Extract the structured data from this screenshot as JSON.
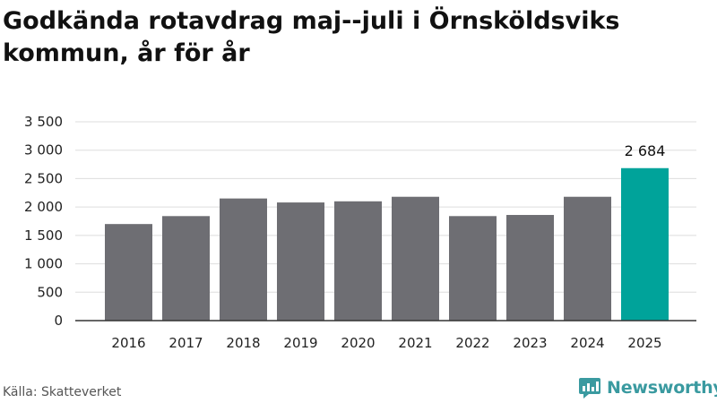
{
  "title": "Godkända rotavdrag maj--juli i Örnsköldsviks kommun, år för år",
  "source": "Källa: Skatteverket",
  "brand": {
    "name": "Newsworthy",
    "icon": "newsworthy-logo-icon",
    "color": "#3a9aa0"
  },
  "colors": {
    "bar": "#6e6e73",
    "highlight": "#00a39a",
    "grid": "#dddddd",
    "axis": "#333333",
    "text": "#222222"
  },
  "chart_data": {
    "type": "bar",
    "title": "Godkända rotavdrag maj--juli i Örnsköldsviks kommun, år för år",
    "categories": [
      "2016",
      "2017",
      "2018",
      "2019",
      "2020",
      "2021",
      "2022",
      "2023",
      "2024",
      "2025"
    ],
    "values": [
      1700,
      1840,
      2150,
      2080,
      2100,
      2180,
      1840,
      1860,
      2180,
      2684
    ],
    "highlight_index": 9,
    "data_labels": [
      {
        "index": 9,
        "text": "2 684"
      }
    ],
    "ylim": [
      0,
      3500
    ],
    "yticks": [
      0,
      500,
      1000,
      1500,
      2000,
      2500,
      3000,
      3500
    ],
    "ytick_labels": [
      "0",
      "500",
      "1 000",
      "1 500",
      "2 000",
      "2 500",
      "3 000",
      "3 500"
    ],
    "grid": true,
    "xlabel": "",
    "ylabel": ""
  }
}
